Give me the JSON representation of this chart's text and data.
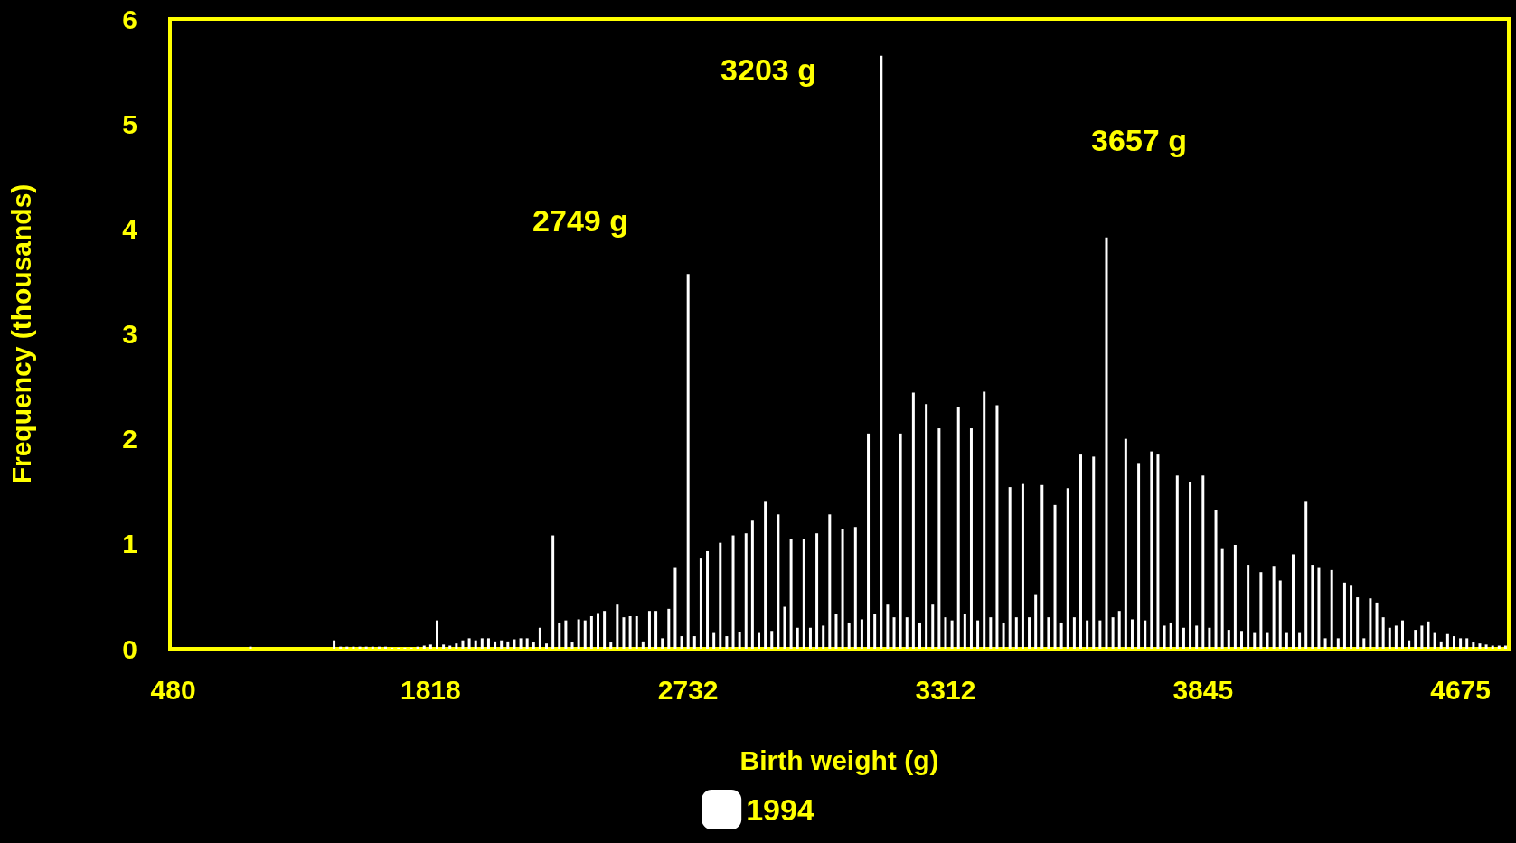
{
  "chart_data": {
    "type": "bar",
    "xlabel": "Birth weight (g)",
    "ylabel": "Frequency (thousands)",
    "categories": [
      "480",
      null,
      null,
      null,
      null,
      null,
      null,
      null,
      null,
      null,
      null,
      null,
      null,
      null,
      null,
      null,
      null,
      null,
      null,
      null,
      null,
      null,
      null,
      null,
      null,
      null,
      null,
      null,
      null,
      null,
      null,
      null,
      null,
      null,
      null,
      null,
      null,
      null,
      null,
      null,
      "1818",
      null,
      null,
      null,
      null,
      null,
      null,
      null,
      null,
      null,
      null,
      null,
      null,
      null,
      null,
      null,
      null,
      null,
      null,
      null,
      null,
      null,
      null,
      null,
      null,
      null,
      null,
      null,
      null,
      null,
      null,
      null,
      null,
      null,
      null,
      null,
      null,
      null,
      null,
      null,
      "2732",
      null,
      null,
      null,
      null,
      null,
      null,
      null,
      null,
      null,
      null,
      null,
      null,
      null,
      null,
      null,
      null,
      null,
      null,
      null,
      null,
      null,
      null,
      null,
      null,
      null,
      null,
      null,
      null,
      null,
      null,
      null,
      null,
      null,
      null,
      null,
      null,
      null,
      null,
      null,
      "3312",
      null,
      null,
      null,
      null,
      null,
      null,
      null,
      null,
      null,
      null,
      null,
      null,
      null,
      null,
      null,
      null,
      null,
      null,
      null,
      null,
      null,
      null,
      null,
      null,
      null,
      null,
      null,
      null,
      null,
      null,
      null,
      null,
      null,
      null,
      null,
      null,
      null,
      null,
      null,
      "3845",
      null,
      null,
      null,
      null,
      null,
      null,
      null,
      null,
      null,
      null,
      null,
      null,
      null,
      null,
      null,
      null,
      null,
      null,
      null,
      null,
      null,
      null,
      null,
      null,
      null,
      null,
      null,
      null,
      null,
      null,
      null,
      null,
      null,
      null,
      null,
      null,
      null,
      null,
      null,
      "4675",
      null,
      null,
      null,
      null,
      null,
      null,
      null
    ],
    "series": [
      {
        "name": "1994",
        "color": "#ffffff",
        "values": [
          0,
          0,
          0,
          0,
          0,
          0,
          0,
          0,
          0,
          0,
          0,
          0,
          0.02,
          0,
          0,
          0,
          0,
          0,
          0,
          0,
          0,
          0,
          0,
          0,
          0,
          0.08,
          0.02,
          0.02,
          0.02,
          0.02,
          0.02,
          0.02,
          0.02,
          0.02,
          0.01,
          0.01,
          0.01,
          0.01,
          0.02,
          0.03,
          0.04,
          0.27,
          0.04,
          0.03,
          0.05,
          0.08,
          0.1,
          0.08,
          0.1,
          0.1,
          0.07,
          0.08,
          0.07,
          0.09,
          0.1,
          0.1,
          0.06,
          0.2,
          0.05,
          1.08,
          0.25,
          0.27,
          0.06,
          0.28,
          0.27,
          0.31,
          0.34,
          0.36,
          0.06,
          0.42,
          0.3,
          0.31,
          0.31,
          0.07,
          0.36,
          0.36,
          0.1,
          0.38,
          0.77,
          0.12,
          3.57,
          0.12,
          0.86,
          0.93,
          0.15,
          1.01,
          0.12,
          1.08,
          0.16,
          1.1,
          1.22,
          0.15,
          1.4,
          0.17,
          1.28,
          0.4,
          1.05,
          0.2,
          1.05,
          0.2,
          1.1,
          0.22,
          1.28,
          0.33,
          1.14,
          0.25,
          1.16,
          0.28,
          2.05,
          0.33,
          5.65,
          0.42,
          0.3,
          2.05,
          0.3,
          2.44,
          0.25,
          2.33,
          0.42,
          2.1,
          0.3,
          0.27,
          2.3,
          0.33,
          2.1,
          0.27,
          2.45,
          0.3,
          2.32,
          0.25,
          1.54,
          0.3,
          1.57,
          0.3,
          0.52,
          1.56,
          0.3,
          1.37,
          0.25,
          1.53,
          0.3,
          1.85,
          0.27,
          1.83,
          0.27,
          3.92,
          0.3,
          0.36,
          2.0,
          0.28,
          1.77,
          0.27,
          1.88,
          1.85,
          0.22,
          0.25,
          1.65,
          0.2,
          1.59,
          0.22,
          1.65,
          0.2,
          1.32,
          0.95,
          0.18,
          0.99,
          0.17,
          0.8,
          0.15,
          0.73,
          0.15,
          0.79,
          0.65,
          0.15,
          0.9,
          0.15,
          1.4,
          0.8,
          0.77,
          0.1,
          0.75,
          0.1,
          0.63,
          0.6,
          0.49,
          0.1,
          0.48,
          0.44,
          0.3,
          0.2,
          0.22,
          0.27,
          0.08,
          0.18,
          0.22,
          0.26,
          0.15,
          0.07,
          0.14,
          0.12,
          0.1,
          0.1,
          0.06,
          0.05,
          0.04,
          0.03,
          0.03,
          0.03
        ]
      }
    ],
    "annotations": [
      "2749 g",
      "3203 g",
      "3657 g"
    ],
    "ylim": [
      0,
      6
    ],
    "yticks": [
      0,
      1,
      2,
      3,
      4,
      5,
      6
    ],
    "grid": false,
    "legend": "bottom"
  }
}
